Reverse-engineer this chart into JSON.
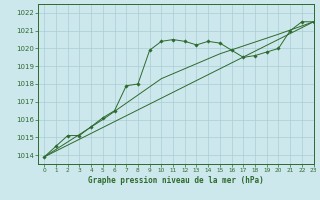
{
  "title": "Graphe pression niveau de la mer (hPa)",
  "bg_color": "#cde8ec",
  "grid_color": "#a8cdd4",
  "line_color": "#2d6a2d",
  "xlim": [
    -0.5,
    23
  ],
  "ylim": [
    1013.5,
    1022.5
  ],
  "yticks": [
    1014,
    1015,
    1016,
    1017,
    1018,
    1019,
    1020,
    1021,
    1022
  ],
  "xticks": [
    0,
    1,
    2,
    3,
    4,
    5,
    6,
    7,
    8,
    9,
    10,
    11,
    12,
    13,
    14,
    15,
    16,
    17,
    18,
    19,
    20,
    21,
    22,
    23
  ],
  "series1_marked": {
    "x": [
      0,
      1,
      2,
      3,
      4,
      5,
      6,
      7,
      8,
      9,
      10,
      11,
      12,
      13,
      14,
      15,
      16,
      17,
      18,
      19,
      20,
      21,
      22,
      23
    ],
    "y": [
      1013.9,
      1014.5,
      1015.1,
      1015.1,
      1015.6,
      1016.1,
      1016.5,
      1017.9,
      1018.0,
      1019.9,
      1020.4,
      1020.5,
      1020.4,
      1020.2,
      1020.4,
      1020.3,
      1019.9,
      1019.5,
      1019.6,
      1019.8,
      1020.0,
      1021.0,
      1021.5,
      1021.5
    ]
  },
  "series2_line": {
    "x": [
      0,
      23
    ],
    "y": [
      1013.9,
      1021.5
    ]
  },
  "series3_line": {
    "x": [
      0,
      5,
      10,
      15,
      20,
      23
    ],
    "y": [
      1013.9,
      1016.0,
      1018.3,
      1019.7,
      1020.8,
      1021.5
    ]
  }
}
